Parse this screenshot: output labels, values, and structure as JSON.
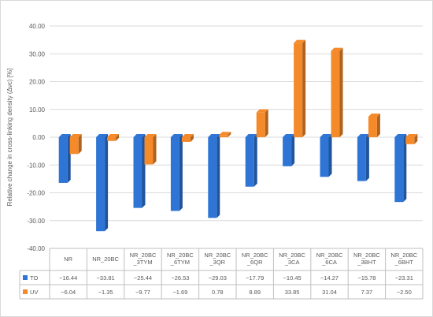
{
  "chart_data": {
    "type": "bar",
    "ylabel": "Relative change in cross-linking density (Δνc) [%]",
    "ylim": [
      -40,
      40
    ],
    "ytick_step": 10,
    "ytick_labels": [
      "40.00",
      "30.00",
      "20.00",
      "10.00",
      "0.00",
      "-10.00",
      "-20.00",
      "-30.00",
      "-40.00"
    ],
    "categories": [
      [
        "NR"
      ],
      [
        "NR_20BC"
      ],
      [
        "NR_20BC",
        "_3TYM"
      ],
      [
        "NR_20BC",
        "_6TYM"
      ],
      [
        "NR_20BC",
        "_3QR"
      ],
      [
        "NR_20BC",
        "_6QR"
      ],
      [
        "NR_20BC",
        "_3CA"
      ],
      [
        "NR_20BC",
        "_6CA"
      ],
      [
        "NR_20BC",
        "_3BHT"
      ],
      [
        "NR_20BC",
        "_6BHT"
      ]
    ],
    "series": [
      {
        "name": "TO",
        "color": "#2E75D6",
        "values": [
          -16.44,
          -33.81,
          -25.44,
          -26.53,
          -29.03,
          -17.79,
          -10.45,
          -14.27,
          -15.78,
          -23.31
        ],
        "value_labels": [
          "−16.44",
          "−33.81",
          "−25.44",
          "−26.53",
          "−29.03",
          "−17.79",
          "−10.45",
          "−14.27",
          "−15.78",
          "−23.31"
        ]
      },
      {
        "name": "UV",
        "color": "#F58A2A",
        "values": [
          -6.04,
          -1.35,
          -9.77,
          -1.69,
          0.78,
          8.89,
          33.85,
          31.04,
          7.37,
          -2.5
        ],
        "value_labels": [
          "−6.04",
          "−1.35",
          "−9.77",
          "−1.69",
          "0.78",
          "8.89",
          "33.85",
          "31.04",
          "7.37",
          "−2.50"
        ]
      }
    ],
    "grid": true,
    "legend": "data-table"
  }
}
